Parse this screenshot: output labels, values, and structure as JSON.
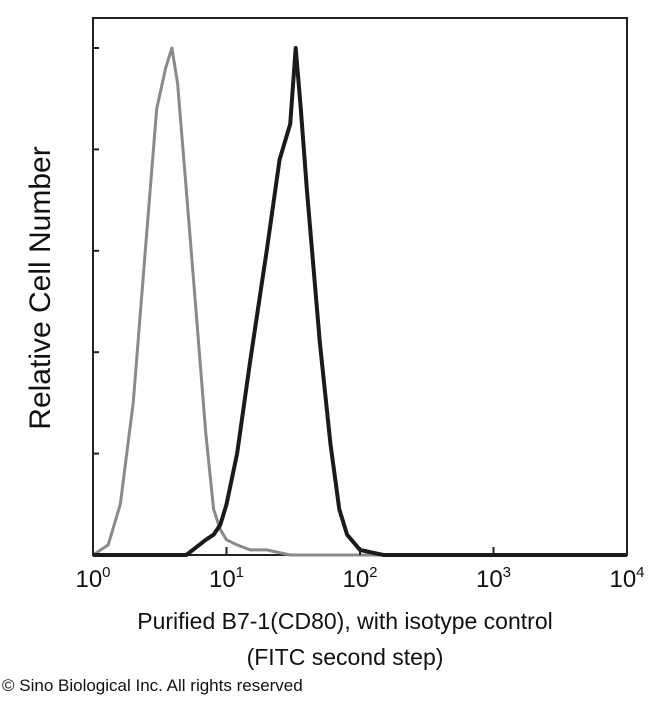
{
  "chart_data": {
    "type": "line",
    "ylabel": "Relative Cell Number",
    "xlabel_line1": "Purified B7-1(CD80), with isotype control",
    "xlabel_line2": "(FITC second step)",
    "x_scale": "log",
    "xlim": [
      1,
      10000
    ],
    "ylim": [
      0,
      1
    ],
    "x_ticks": [
      {
        "base": "10",
        "exp": "0",
        "value": 1
      },
      {
        "base": "10",
        "exp": "1",
        "value": 10
      },
      {
        "base": "10",
        "exp": "2",
        "value": 100
      },
      {
        "base": "10",
        "exp": "3",
        "value": 1000
      },
      {
        "base": "10",
        "exp": "4",
        "value": 10000
      }
    ],
    "y_ticks": [
      0,
      0.2,
      0.4,
      0.6,
      0.8,
      1.0
    ],
    "grid": false,
    "series": [
      {
        "color": "#8a8a8a",
        "x": [
          1.0,
          1.3,
          1.6,
          2.0,
          2.5,
          3.0,
          3.5,
          3.9,
          4.3,
          5.0,
          6.0,
          7.0,
          8.0,
          9.0,
          10.0,
          12.0,
          15.0,
          20.0,
          30.0,
          50.0,
          100.0,
          1000.0,
          10000.0
        ],
        "y": [
          0.0,
          0.02,
          0.1,
          0.3,
          0.62,
          0.88,
          0.96,
          1.0,
          0.93,
          0.72,
          0.46,
          0.24,
          0.09,
          0.05,
          0.03,
          0.02,
          0.01,
          0.01,
          0.0,
          0.0,
          0.0,
          0.0,
          0.0
        ]
      },
      {
        "color": "#1a1a1a",
        "x": [
          1.0,
          5.0,
          7.0,
          8.0,
          9.0,
          10.0,
          12.0,
          15.0,
          18.0,
          20.0,
          25.0,
          30.0,
          33.0,
          36.0,
          40.0,
          50.0,
          60.0,
          70.0,
          80.0,
          100.0,
          150.0,
          1000.0,
          10000.0
        ],
        "y": [
          0.0,
          0.0,
          0.03,
          0.04,
          0.06,
          0.1,
          0.2,
          0.38,
          0.52,
          0.6,
          0.78,
          0.85,
          1.0,
          0.88,
          0.72,
          0.42,
          0.22,
          0.09,
          0.04,
          0.01,
          0.0,
          0.0,
          0.0
        ]
      }
    ]
  },
  "copyright": "© Sino Biological Inc. All rights reserved"
}
